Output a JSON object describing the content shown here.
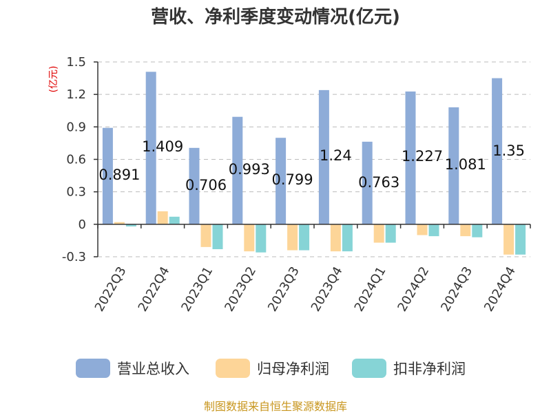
{
  "chart_data": {
    "type": "bar",
    "title": "营收、净利季度变动情况(亿元)",
    "ylabel": "(亿元)",
    "categories": [
      "2022Q3",
      "2022Q4",
      "2023Q1",
      "2023Q2",
      "2023Q3",
      "2023Q4",
      "2024Q1",
      "2024Q2",
      "2024Q3",
      "2024Q4"
    ],
    "series": [
      {
        "name": "营业总收入",
        "color": "#8eacd8",
        "values": [
          0.891,
          1.409,
          0.706,
          0.993,
          0.799,
          1.24,
          0.763,
          1.227,
          1.081,
          1.35
        ]
      },
      {
        "name": "归母净利润",
        "color": "#fdd598",
        "values": [
          0.02,
          0.12,
          -0.21,
          -0.25,
          -0.24,
          -0.25,
          -0.17,
          -0.1,
          -0.11,
          -0.28
        ]
      },
      {
        "name": "扣非净利润",
        "color": "#86d4d6",
        "values": [
          -0.02,
          0.07,
          -0.23,
          -0.26,
          -0.24,
          -0.25,
          -0.17,
          -0.11,
          -0.12,
          -0.28
        ]
      }
    ],
    "data_labels": [
      "0.891",
      "1.409",
      "0.706",
      "0.993",
      "0.799",
      "1.24",
      "0.763",
      "1.227",
      "1.081",
      "1.35"
    ],
    "yticks": [
      "1.5",
      "1.2",
      "0.9",
      "0.6",
      "0.3",
      "0",
      "-0.3"
    ],
    "ylim": [
      -0.3,
      1.5
    ],
    "grid": true,
    "legend_position": "bottom"
  },
  "source": "制图数据来自恒生聚源数据库"
}
